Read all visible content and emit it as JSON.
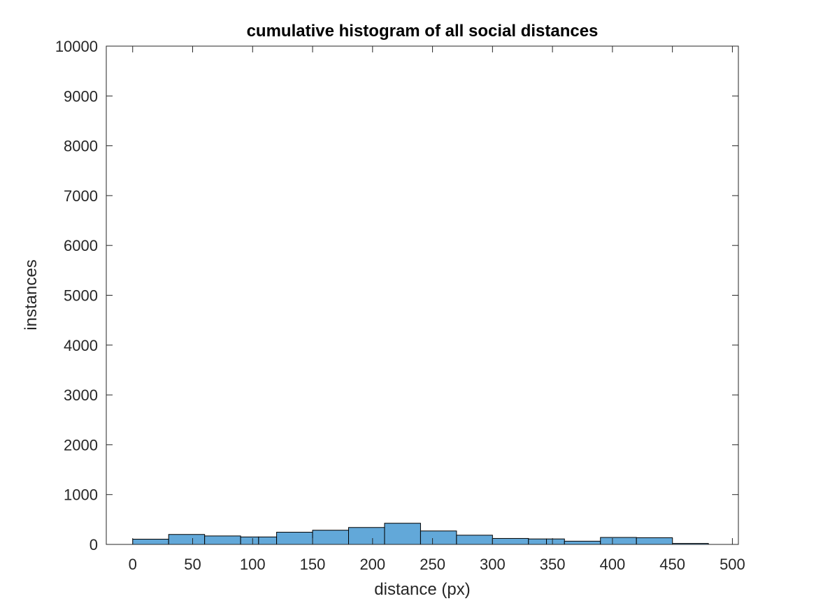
{
  "chart_data": {
    "type": "bar",
    "title": "cumulative histogram of all social distances",
    "xlabel": "distance (px)",
    "ylabel": "instances",
    "xlim": [
      -22,
      505
    ],
    "ylim": [
      0,
      10000
    ],
    "xticks": [
      0,
      50,
      100,
      150,
      200,
      250,
      300,
      350,
      400,
      450,
      500
    ],
    "yticks": [
      0,
      1000,
      2000,
      3000,
      4000,
      5000,
      6000,
      7000,
      8000,
      9000,
      10000
    ],
    "grid": false,
    "bar_color": "#62a8d9",
    "bins": [
      {
        "from": 0,
        "to": 30,
        "value": 105
      },
      {
        "from": 30,
        "to": 60,
        "value": 200
      },
      {
        "from": 60,
        "to": 90,
        "value": 170
      },
      {
        "from": 90,
        "to": 105,
        "value": 150
      },
      {
        "from": 105,
        "to": 120,
        "value": 150
      },
      {
        "from": 120,
        "to": 150,
        "value": 245
      },
      {
        "from": 150,
        "to": 180,
        "value": 285
      },
      {
        "from": 180,
        "to": 210,
        "value": 340
      },
      {
        "from": 210,
        "to": 240,
        "value": 425
      },
      {
        "from": 240,
        "to": 270,
        "value": 270
      },
      {
        "from": 270,
        "to": 300,
        "value": 185
      },
      {
        "from": 300,
        "to": 330,
        "value": 120
      },
      {
        "from": 330,
        "to": 345,
        "value": 110
      },
      {
        "from": 345,
        "to": 360,
        "value": 110
      },
      {
        "from": 360,
        "to": 390,
        "value": 65
      },
      {
        "from": 390,
        "to": 420,
        "value": 140
      },
      {
        "from": 420,
        "to": 450,
        "value": 135
      },
      {
        "from": 450,
        "to": 480,
        "value": 20
      }
    ]
  }
}
